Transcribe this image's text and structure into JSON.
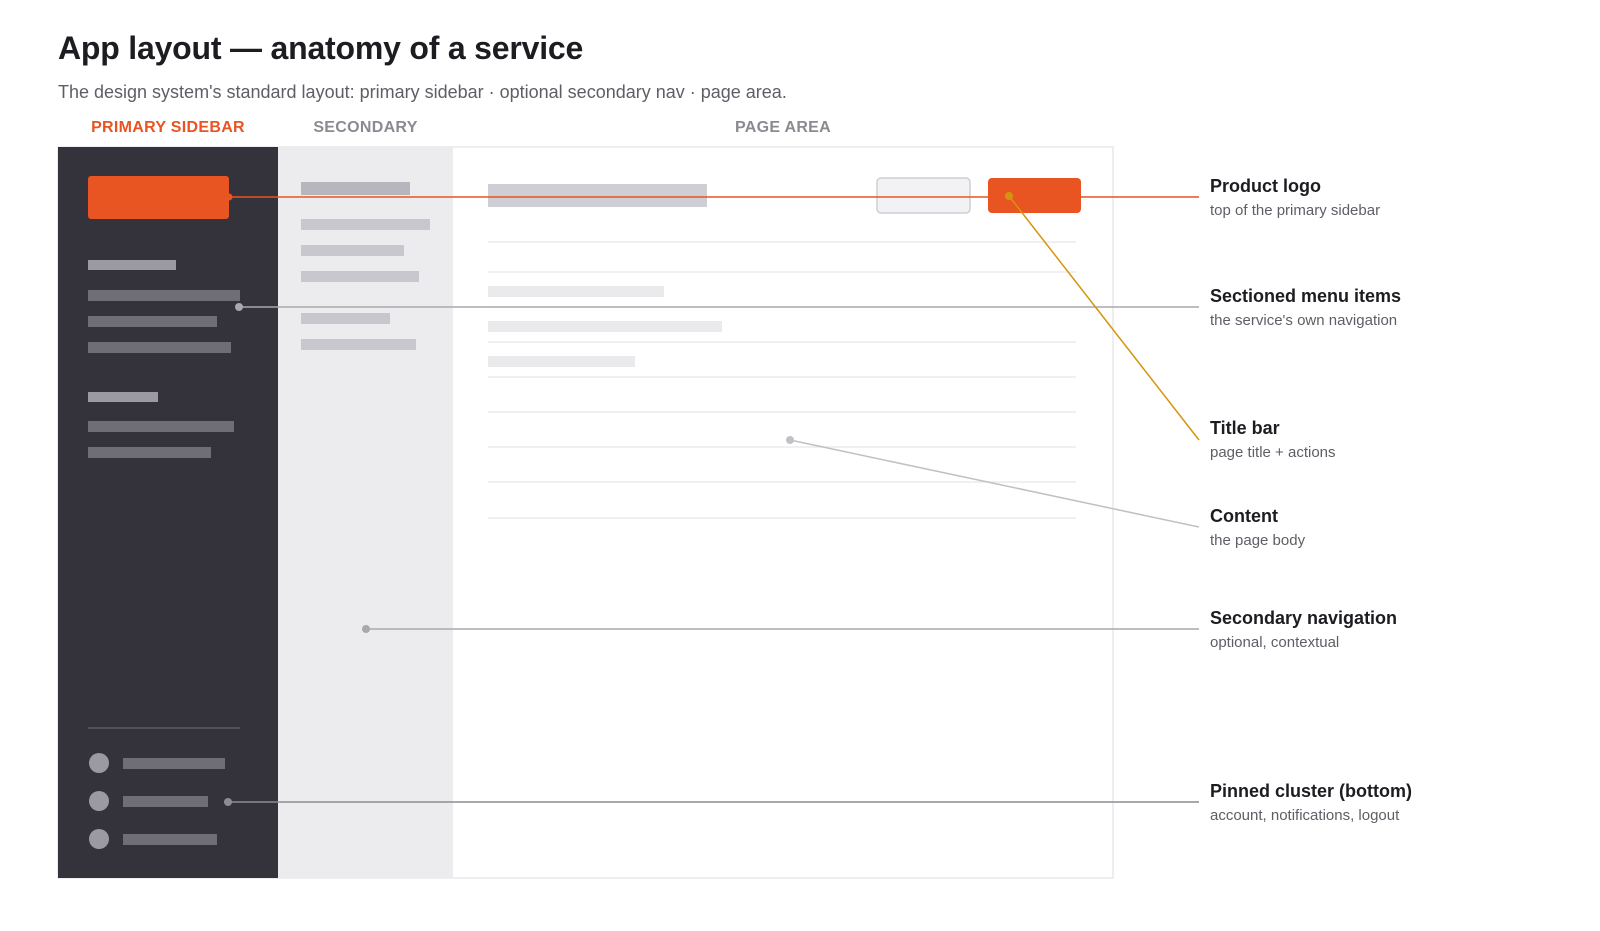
{
  "header": {
    "title": "App layout — anatomy of a service",
    "subtitle": "The design system's standard layout: primary sidebar · optional secondary nav · page area."
  },
  "columns": {
    "primary": "PRIMARY SIDEBAR",
    "secondary": "SECONDARY",
    "page": "PAGE AREA"
  },
  "annotations": [
    {
      "title": "Product logo",
      "sub": "top of the primary sidebar"
    },
    {
      "title": "Sectioned menu items",
      "sub": "the service's own navigation"
    },
    {
      "title": "Title bar",
      "sub": "page title + actions"
    },
    {
      "title": "Content",
      "sub": "the page body"
    },
    {
      "title": "Secondary navigation",
      "sub": "optional, contextual"
    },
    {
      "title": "Pinned cluster (bottom)",
      "sub": "account, notifications, logout"
    }
  ],
  "colors": {
    "accent": "#e85422",
    "sidebar_dark": "#34333b",
    "secondary_bg": "#ececee",
    "title_bar_leader": "#d4950e",
    "leader_gray": "#a8a8ae"
  }
}
